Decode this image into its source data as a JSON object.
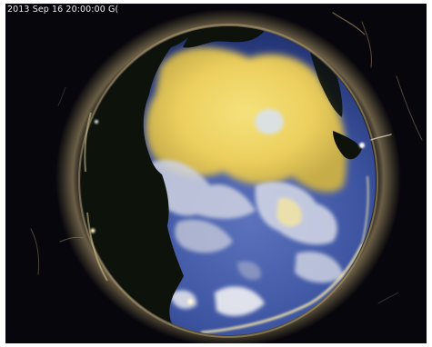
{
  "overlay": {
    "timestamp": "2013 Sep 16  20:00:00 G("
  },
  "colors": {
    "background": "#07060c",
    "lens_ring": "#3a3428",
    "sky_deep_blue": "#1c2d6a",
    "sky_blue": "#4b63b0",
    "cloud_white": "#dfe0ea",
    "cloud_yellow": "#f0d870",
    "tree_silhouette": "#0d120b",
    "horizon_lights": "#f6e7a8"
  },
  "scene": {
    "type": "all-sky fisheye camera frame",
    "features": [
      "sky-dome",
      "cloud-cover",
      "tree-canopy",
      "horizon-lights",
      "lens-ring",
      "insect-trails"
    ]
  }
}
